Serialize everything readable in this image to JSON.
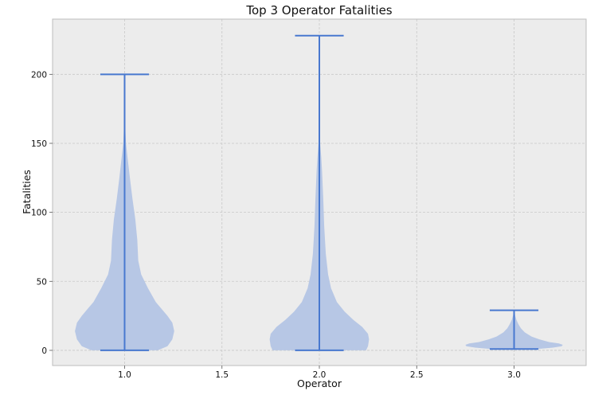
{
  "chart_data": {
    "type": "violin",
    "title": "Top 3 Operator Fatalities",
    "xlabel": "Operator",
    "ylabel": "Fatalities",
    "xlim": [
      0.63,
      3.37
    ],
    "ylim": [
      -11,
      240
    ],
    "xticks": [
      "1.0",
      "1.5",
      "2.0",
      "2.5",
      "3.0"
    ],
    "yticks": [
      "0",
      "50",
      "100",
      "150",
      "200"
    ],
    "grid": true,
    "colors": {
      "body": "#b7c7e5",
      "lines": "#4878cf",
      "plot_bg": "#ececec",
      "grid": "#c8c8c8"
    },
    "violins": [
      {
        "position": 1.0,
        "min": 0,
        "max": 200,
        "profile": [
          [
            0,
            0.17
          ],
          [
            3,
            0.22
          ],
          [
            8,
            0.245
          ],
          [
            14,
            0.255
          ],
          [
            20,
            0.245
          ],
          [
            25,
            0.22
          ],
          [
            30,
            0.19
          ],
          [
            35,
            0.16
          ],
          [
            45,
            0.12
          ],
          [
            55,
            0.085
          ],
          [
            65,
            0.07
          ],
          [
            80,
            0.065
          ],
          [
            95,
            0.055
          ],
          [
            110,
            0.04
          ],
          [
            125,
            0.027
          ],
          [
            140,
            0.015
          ],
          [
            150,
            0.007
          ],
          [
            165,
            0.002
          ],
          [
            180,
            0.001
          ],
          [
            200,
            0
          ]
        ]
      },
      {
        "position": 2.0,
        "min": 0,
        "max": 228,
        "profile": [
          [
            0,
            0.24
          ],
          [
            3,
            0.25
          ],
          [
            8,
            0.255
          ],
          [
            12,
            0.25
          ],
          [
            17,
            0.22
          ],
          [
            22,
            0.175
          ],
          [
            28,
            0.13
          ],
          [
            35,
            0.09
          ],
          [
            45,
            0.06
          ],
          [
            55,
            0.045
          ],
          [
            70,
            0.033
          ],
          [
            90,
            0.025
          ],
          [
            110,
            0.02
          ],
          [
            130,
            0.014
          ],
          [
            140,
            0.01
          ],
          [
            150,
            0.004
          ],
          [
            165,
            0.001
          ],
          [
            190,
            0.0005
          ],
          [
            228,
            0
          ]
        ]
      },
      {
        "position": 3.0,
        "min": 1,
        "max": 29,
        "profile": [
          [
            1,
            0.12
          ],
          [
            2,
            0.2
          ],
          [
            3,
            0.245
          ],
          [
            4,
            0.25
          ],
          [
            5,
            0.23
          ],
          [
            6,
            0.18
          ],
          [
            8,
            0.13
          ],
          [
            10,
            0.09
          ],
          [
            13,
            0.055
          ],
          [
            16,
            0.035
          ],
          [
            19,
            0.022
          ],
          [
            22,
            0.012
          ],
          [
            25,
            0.006
          ],
          [
            27,
            0.003
          ],
          [
            29,
            0
          ]
        ]
      }
    ]
  }
}
